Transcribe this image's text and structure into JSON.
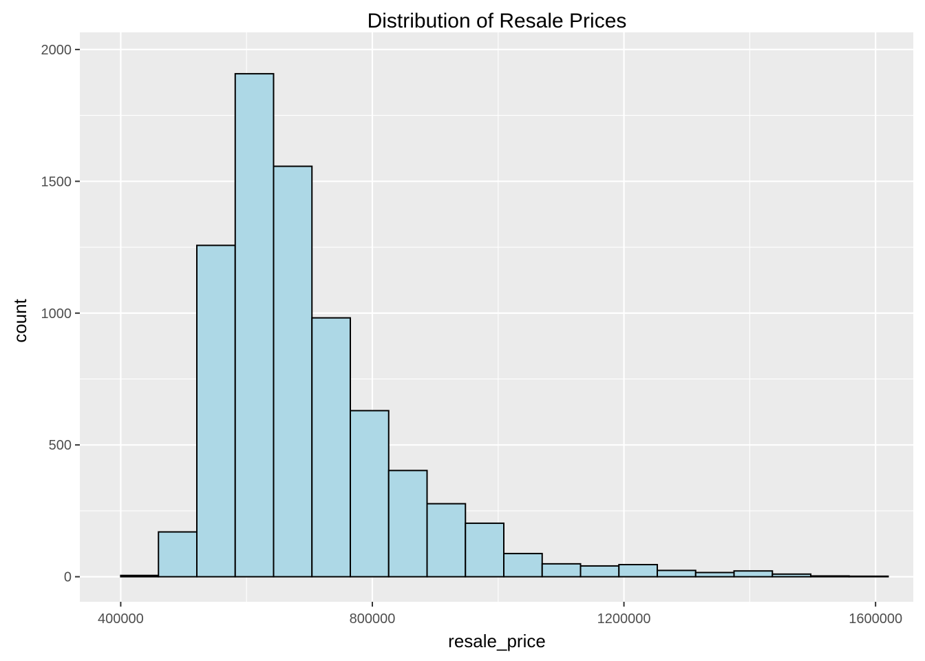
{
  "chart_data": {
    "type": "bar",
    "title": "Distribution of Resale Prices",
    "xlabel": "resale_price",
    "ylabel": "count",
    "xlim": [
      335000,
      1660000
    ],
    "ylim": [
      -95,
      2065
    ],
    "x_ticks": [
      400000,
      800000,
      1200000,
      1600000
    ],
    "x_tick_labels": [
      "400000",
      "800000",
      "1200000",
      "1600000"
    ],
    "x_minor_ticks": [
      600000,
      1000000,
      1400000
    ],
    "y_ticks": [
      0,
      500,
      1000,
      1500,
      2000
    ],
    "y_tick_labels": [
      "0",
      "500",
      "1000",
      "1500",
      "2000"
    ],
    "y_minor_ticks": [
      250,
      750,
      1250,
      1750
    ],
    "bins": [
      {
        "start": 400000,
        "end": 460000,
        "count": 5
      },
      {
        "start": 460000,
        "end": 521000,
        "count": 170
      },
      {
        "start": 521000,
        "end": 582000,
        "count": 1257
      },
      {
        "start": 582000,
        "end": 643000,
        "count": 1908
      },
      {
        "start": 643000,
        "end": 704000,
        "count": 1557
      },
      {
        "start": 704000,
        "end": 765000,
        "count": 982
      },
      {
        "start": 765000,
        "end": 826000,
        "count": 630
      },
      {
        "start": 826000,
        "end": 887000,
        "count": 403
      },
      {
        "start": 887000,
        "end": 948000,
        "count": 277
      },
      {
        "start": 948000,
        "end": 1009000,
        "count": 203
      },
      {
        "start": 1009000,
        "end": 1070000,
        "count": 88
      },
      {
        "start": 1070000,
        "end": 1131000,
        "count": 49
      },
      {
        "start": 1131000,
        "end": 1192000,
        "count": 41
      },
      {
        "start": 1192000,
        "end": 1253000,
        "count": 46
      },
      {
        "start": 1253000,
        "end": 1314000,
        "count": 24
      },
      {
        "start": 1314000,
        "end": 1375000,
        "count": 16
      },
      {
        "start": 1375000,
        "end": 1436000,
        "count": 22
      },
      {
        "start": 1436000,
        "end": 1497000,
        "count": 10
      },
      {
        "start": 1497000,
        "end": 1558000,
        "count": 3
      },
      {
        "start": 1558000,
        "end": 1620000,
        "count": 2
      }
    ],
    "colors": {
      "fill": "#ADD8E6",
      "outline": "#000000",
      "panel": "#EBEBEB",
      "grid": "#FFFFFF",
      "tick_text": "#4D4D4D",
      "tick_mark": "#333333"
    },
    "grid": true,
    "legend": "none"
  }
}
